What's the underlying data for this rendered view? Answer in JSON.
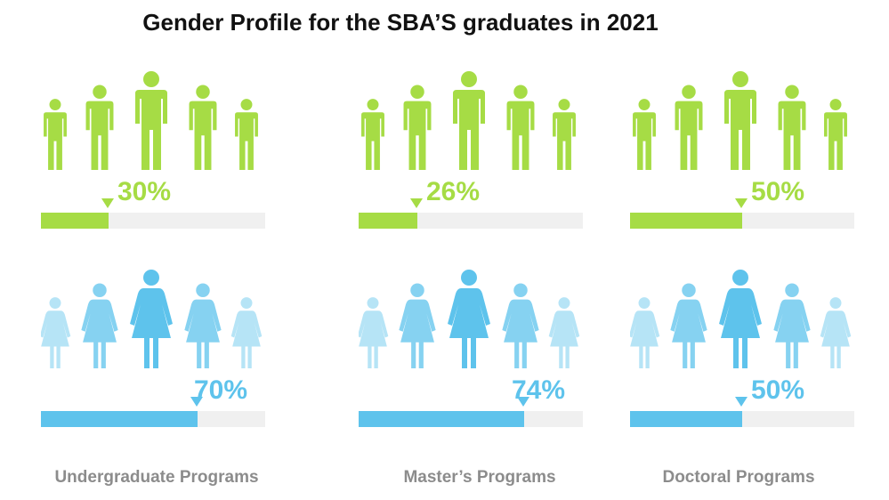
{
  "title": "Gender Profile for the SBA’S graduates in 2021",
  "colors": {
    "male": "#a6dc45",
    "female": "#5ec3ec",
    "track": "#f0f0f0"
  },
  "icons": {
    "male": "man-icon",
    "female": "woman-icon"
  },
  "chart_data": {
    "type": "bar",
    "title": "Gender Profile for the SBA’S graduates in 2021",
    "categories": [
      "Undergraduate  Programs",
      "Master’s Programs",
      "Doctoral Programs"
    ],
    "series": [
      {
        "values": [
          30,
          26,
          50
        ],
        "labels": [
          "30%",
          "26%",
          "50%"
        ]
      },
      {
        "values": [
          70,
          74,
          50
        ],
        "labels": [
          "70%",
          "74%",
          "50%"
        ]
      }
    ],
    "ylim": [
      0,
      100
    ]
  }
}
